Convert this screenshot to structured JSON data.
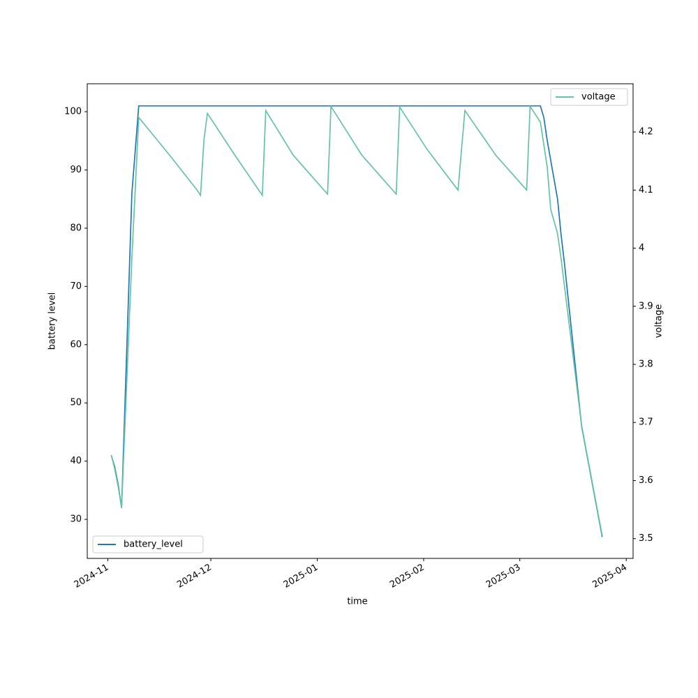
{
  "chart_data": {
    "type": "line",
    "xlabel": "time",
    "ylabel": "battery level",
    "y2label": "voltage",
    "xlim": [
      "2024-10-26",
      "2025-04-03"
    ],
    "xticks": [
      "2024-11",
      "2024-12",
      "2025-01",
      "2025-02",
      "2025-03",
      "2025-04"
    ],
    "ylim": [
      23.3,
      104.8
    ],
    "yticks": [
      30,
      40,
      50,
      60,
      70,
      80,
      90,
      100
    ],
    "y2lim": [
      3.466,
      4.283
    ],
    "y2ticks": [
      3.5,
      3.6,
      3.7,
      3.8,
      3.9,
      4.0,
      4.1,
      4.2
    ],
    "series": [
      {
        "name": "battery_level",
        "color": "#1f77b4",
        "axis": "y",
        "legend": "lower left",
        "x": [
          "2024-11-02",
          "2024-11-03",
          "2024-11-04",
          "2024-11-05",
          "2024-11-08",
          "2024-11-10",
          "2025-03-07",
          "2025-03-08",
          "2025-03-09",
          "2025-03-12",
          "2025-03-13",
          "2025-03-14",
          "2025-03-19",
          "2025-03-25"
        ],
        "values": [
          41,
          39,
          36,
          32,
          86,
          101,
          101,
          99,
          95,
          85,
          79,
          74,
          46,
          27
        ]
      },
      {
        "name": "voltage",
        "color": "#66c2a5",
        "axis": "y2",
        "legend": "upper right",
        "x": [
          "2024-11-02",
          "2024-11-03",
          "2024-11-04",
          "2024-11-05",
          "2024-11-08",
          "2024-11-10",
          "2024-11-19",
          "2024-11-27",
          "2024-11-28",
          "2024-11-29",
          "2024-11-30",
          "2024-12-08",
          "2024-12-16",
          "2024-12-17",
          "2024-12-25",
          "2025-01-04",
          "2025-01-05",
          "2025-01-14",
          "2025-01-24",
          "2025-01-25",
          "2025-02-02",
          "2025-02-11",
          "2025-02-13",
          "2025-02-22",
          "2025-03-03",
          "2025-03-04",
          "2025-03-07",
          "2025-03-09",
          "2025-03-10",
          "2025-03-12",
          "2025-03-13",
          "2025-03-14",
          "2025-03-19",
          "2025-03-25"
        ],
        "values": [
          3.644,
          3.62,
          3.59,
          3.554,
          3.983,
          4.225,
          4.16,
          4.1,
          4.091,
          4.187,
          4.232,
          4.16,
          4.091,
          4.237,
          4.16,
          4.093,
          4.244,
          4.16,
          4.093,
          4.243,
          4.17,
          4.1,
          4.237,
          4.16,
          4.1,
          4.244,
          4.217,
          4.139,
          4.067,
          4.025,
          3.983,
          3.935,
          3.695,
          3.505
        ]
      }
    ]
  }
}
